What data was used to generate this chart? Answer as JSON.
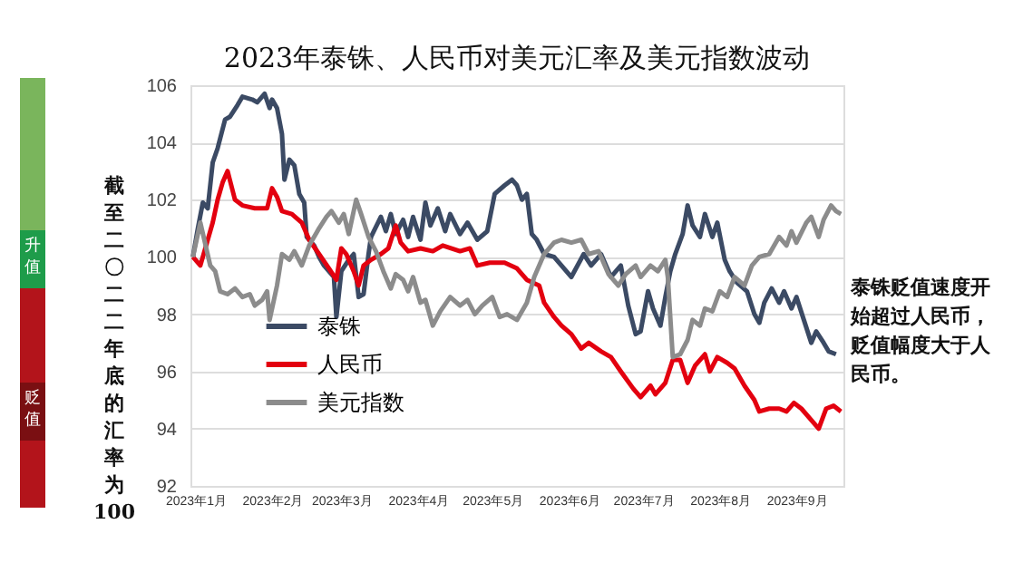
{
  "chart_data": {
    "type": "line",
    "title": "2023年泰铢、人民币对美元汇率及美元指数波动",
    "ylabel": "截至二〇二二年底的汇率为100",
    "xlim": [
      "2022-12-30",
      "2023-09-20"
    ],
    "xticks": [
      {
        "value": "2023-01-01",
        "label": "2023年1月"
      },
      {
        "value": "2023-02-01",
        "label": "2023年2月"
      },
      {
        "value": "2023-03-01",
        "label": "2023年3月"
      },
      {
        "value": "2023-04-01",
        "label": "2023年4月"
      },
      {
        "value": "2023-05-01",
        "label": "2023年5月"
      },
      {
        "value": "2023-06-01",
        "label": "2023年6月"
      },
      {
        "value": "2023-07-01",
        "label": "2023年7月"
      },
      {
        "value": "2023-08-01",
        "label": "2023年8月"
      },
      {
        "value": "2023-09-01",
        "label": "2023年9月"
      }
    ],
    "ylim": [
      92,
      106
    ],
    "yticks": [
      92,
      94,
      96,
      98,
      100,
      102,
      104,
      106
    ],
    "grid": "y",
    "legend": "bottom left",
    "line_style": "solid",
    "marker": "none",
    "annotations": [
      "升值",
      "贬值",
      "泰铢贬值速度开始超过人民币，贬值幅度大于人民币。"
    ],
    "series": [
      {
        "name": "泰铢",
        "color": "#3b4a64",
        "x": [
          "2022-12-31",
          "2023-01-02",
          "2023-01-04",
          "2023-01-06",
          "2023-01-08",
          "2023-01-10",
          "2023-01-13",
          "2023-01-15",
          "2023-01-18",
          "2023-01-20",
          "2023-01-24",
          "2023-01-26",
          "2023-01-29",
          "2023-01-31",
          "2023-02-01",
          "2023-02-03",
          "2023-02-05",
          "2023-02-06",
          "2023-02-08",
          "2023-02-10",
          "2023-02-12",
          "2023-02-14",
          "2023-02-15",
          "2023-02-18",
          "2023-02-20",
          "2023-02-22",
          "2023-02-26",
          "2023-02-27",
          "2023-03-01",
          "2023-03-04",
          "2023-03-06",
          "2023-03-08",
          "2023-03-10",
          "2023-03-12",
          "2023-03-13",
          "2023-03-17",
          "2023-03-19",
          "2023-03-21",
          "2023-03-23",
          "2023-03-26",
          "2023-03-28",
          "2023-03-30",
          "2023-04-02",
          "2023-04-04",
          "2023-04-06",
          "2023-04-09",
          "2023-04-12",
          "2023-04-14",
          "2023-04-18",
          "2023-04-21",
          "2023-04-25",
          "2023-04-29",
          "2023-05-02",
          "2023-05-06",
          "2023-05-09",
          "2023-05-11",
          "2023-05-13",
          "2023-05-15",
          "2023-05-17",
          "2023-05-19",
          "2023-05-22",
          "2023-05-26",
          "2023-05-29",
          "2023-06-02",
          "2023-06-07",
          "2023-06-10",
          "2023-06-14",
          "2023-06-18",
          "2023-06-22",
          "2023-06-25",
          "2023-06-28",
          "2023-06-30",
          "2023-07-03",
          "2023-07-05",
          "2023-07-08",
          "2023-07-10",
          "2023-07-12",
          "2023-07-14",
          "2023-07-17",
          "2023-07-19",
          "2023-07-21",
          "2023-07-24",
          "2023-07-26",
          "2023-07-29",
          "2023-07-31",
          "2023-08-03",
          "2023-08-05",
          "2023-08-08",
          "2023-08-12",
          "2023-08-15",
          "2023-08-17",
          "2023-08-19",
          "2023-08-22",
          "2023-08-25",
          "2023-08-27",
          "2023-08-30",
          "2023-09-01",
          "2023-09-04",
          "2023-09-07",
          "2023-09-09",
          "2023-09-12",
          "2023-09-14",
          "2023-09-17"
        ],
        "values": [
          100,
          101,
          101.9,
          101.7,
          103.3,
          103.8,
          104.8,
          104.9,
          105.3,
          105.6,
          105.5,
          105.4,
          105.7,
          105.2,
          105.5,
          105.2,
          104.3,
          102.7,
          103.4,
          103.2,
          102.2,
          101.9,
          100.7,
          100.4,
          100,
          99.7,
          99.3,
          97.9,
          99.5,
          99.9,
          100.1,
          98.6,
          98.7,
          100.1,
          100.7,
          101.4,
          100.9,
          101.5,
          100.8,
          101.3,
          100.7,
          101.4,
          100.6,
          101.9,
          101.1,
          101.7,
          100.9,
          101.5,
          100.8,
          101.2,
          100.6,
          100.9,
          102.2,
          102.5,
          102.7,
          102.5,
          102.0,
          102.2,
          100.8,
          100.6,
          100.1,
          100,
          99.7,
          99.3,
          100.1,
          99.7,
          100.1,
          99.3,
          99.7,
          98.3,
          97.3,
          97.4,
          98.8,
          98.2,
          97.6,
          98.6,
          99.5,
          100.1,
          100.8,
          101.8,
          101.1,
          100.7,
          101.5,
          100.7,
          101.2,
          99.9,
          99.5,
          99.1,
          98.8,
          98.0,
          97.7,
          98.4,
          98.9,
          98.4,
          98.8,
          98.2,
          98.6,
          97.8,
          97.0,
          97.4,
          97.0,
          96.7,
          96.6
        ]
      },
      {
        "name": "人民币",
        "color": "#e3000f",
        "x": [
          "2022-12-31",
          "2023-01-03",
          "2023-01-05",
          "2023-01-08",
          "2023-01-10",
          "2023-01-12",
          "2023-01-14",
          "2023-01-17",
          "2023-01-20",
          "2023-01-25",
          "2023-01-30",
          "2023-02-01",
          "2023-02-03",
          "2023-02-05",
          "2023-02-09",
          "2023-02-13",
          "2023-02-16",
          "2023-02-20",
          "2023-02-24",
          "2023-02-27",
          "2023-03-01",
          "2023-03-03",
          "2023-03-06",
          "2023-03-08",
          "2023-03-10",
          "2023-03-13",
          "2023-03-17",
          "2023-03-20",
          "2023-03-23",
          "2023-03-25",
          "2023-03-28",
          "2023-04-02",
          "2023-04-07",
          "2023-04-11",
          "2023-04-18",
          "2023-04-22",
          "2023-04-25",
          "2023-04-30",
          "2023-05-06",
          "2023-05-11",
          "2023-05-15",
          "2023-05-20",
          "2023-05-22",
          "2023-05-26",
          "2023-05-29",
          "2023-06-02",
          "2023-06-06",
          "2023-06-09",
          "2023-06-14",
          "2023-06-18",
          "2023-06-22",
          "2023-06-27",
          "2023-06-30",
          "2023-07-04",
          "2023-07-06",
          "2023-07-10",
          "2023-07-13",
          "2023-07-16",
          "2023-07-19",
          "2023-07-22",
          "2023-07-26",
          "2023-07-28",
          "2023-07-31",
          "2023-08-04",
          "2023-08-07",
          "2023-08-11",
          "2023-08-15",
          "2023-08-17",
          "2023-08-21",
          "2023-08-25",
          "2023-08-28",
          "2023-08-31",
          "2023-09-03",
          "2023-09-07",
          "2023-09-10",
          "2023-09-13",
          "2023-09-16",
          "2023-09-19"
        ],
        "values": [
          100,
          99.7,
          100.3,
          101.2,
          102,
          102.6,
          103.0,
          102,
          101.8,
          101.7,
          101.7,
          102.4,
          102.1,
          101.6,
          101.5,
          101.2,
          100.6,
          100.1,
          99.6,
          99.2,
          100.3,
          100.1,
          99.5,
          99.0,
          99.7,
          99.9,
          100.1,
          100.3,
          101.1,
          100.5,
          100.2,
          100.3,
          100.2,
          100.4,
          100.2,
          100.3,
          99.7,
          99.8,
          99.8,
          99.6,
          99.2,
          99.0,
          98.4,
          97.9,
          97.6,
          97.3,
          96.8,
          97.0,
          96.7,
          96.5,
          96.0,
          95.4,
          95.1,
          95.5,
          95.2,
          95.6,
          96.4,
          96.4,
          95.6,
          96.2,
          96.6,
          96.0,
          96.5,
          96.3,
          96.1,
          95.5,
          95.0,
          94.6,
          94.7,
          94.7,
          94.6,
          94.9,
          94.7,
          94.3,
          94.0,
          94.7,
          94.8,
          94.6
        ]
      },
      {
        "name": "美元指数",
        "color": "#8c8c8c",
        "x": [
          "2022-12-31",
          "2023-01-03",
          "2023-01-07",
          "2023-01-09",
          "2023-01-11",
          "2023-01-14",
          "2023-01-17",
          "2023-01-20",
          "2023-01-23",
          "2023-01-25",
          "2023-01-28",
          "2023-01-30",
          "2023-01-31",
          "2023-02-03",
          "2023-02-05",
          "2023-02-08",
          "2023-02-10",
          "2023-02-13",
          "2023-02-16",
          "2023-02-20",
          "2023-02-23",
          "2023-02-25",
          "2023-02-28",
          "2023-03-02",
          "2023-03-04",
          "2023-03-07",
          "2023-03-09",
          "2023-03-12",
          "2023-03-15",
          "2023-03-18",
          "2023-03-21",
          "2023-03-23",
          "2023-03-26",
          "2023-03-28",
          "2023-03-30",
          "2023-04-02",
          "2023-04-04",
          "2023-04-07",
          "2023-04-10",
          "2023-04-14",
          "2023-04-18",
          "2023-04-21",
          "2023-04-24",
          "2023-04-27",
          "2023-05-01",
          "2023-05-04",
          "2023-05-07",
          "2023-05-11",
          "2023-05-15",
          "2023-05-18",
          "2023-05-22",
          "2023-05-26",
          "2023-05-29",
          "2023-06-02",
          "2023-06-06",
          "2023-06-09",
          "2023-06-13",
          "2023-06-17",
          "2023-06-21",
          "2023-06-24",
          "2023-06-28",
          "2023-06-30",
          "2023-07-04",
          "2023-07-07",
          "2023-07-10",
          "2023-07-11",
          "2023-07-13",
          "2023-07-16",
          "2023-07-19",
          "2023-07-21",
          "2023-07-24",
          "2023-07-26",
          "2023-07-29",
          "2023-08-01",
          "2023-08-04",
          "2023-08-07",
          "2023-08-11",
          "2023-08-14",
          "2023-08-17",
          "2023-08-21",
          "2023-08-25",
          "2023-08-28",
          "2023-08-30",
          "2023-09-01",
          "2023-09-05",
          "2023-09-07",
          "2023-09-10",
          "2023-09-12",
          "2023-09-15",
          "2023-09-17",
          "2023-09-19"
        ],
        "values": [
          100,
          101.2,
          99.7,
          99.5,
          98.8,
          98.7,
          98.9,
          98.6,
          98.7,
          98.3,
          98.5,
          98.8,
          97.8,
          99.0,
          100.1,
          99.9,
          100.2,
          99.7,
          100.4,
          101.0,
          101.4,
          101.6,
          101.2,
          101.5,
          100.8,
          102.0,
          101.5,
          100.7,
          100.2,
          99.5,
          98.9,
          99.4,
          99.2,
          98.8,
          99.3,
          98.4,
          98.5,
          97.6,
          98.1,
          98.6,
          98.3,
          98.5,
          98.0,
          98.3,
          98.6,
          97.9,
          98.0,
          97.8,
          98.4,
          99.3,
          100.1,
          100.5,
          100.6,
          100.5,
          100.6,
          100.1,
          100.2,
          99.4,
          99.0,
          99.4,
          99.7,
          99.3,
          99.7,
          99.5,
          99.9,
          99.3,
          96.5,
          96.6,
          97.1,
          97.8,
          97.6,
          98.2,
          98.1,
          98.8,
          98.6,
          99.3,
          99.0,
          99.7,
          100.0,
          100.1,
          100.7,
          100.4,
          100.9,
          100.5,
          101.2,
          101.4,
          100.7,
          101.3,
          101.8,
          101.6,
          101.5
        ]
      }
    ]
  }
}
